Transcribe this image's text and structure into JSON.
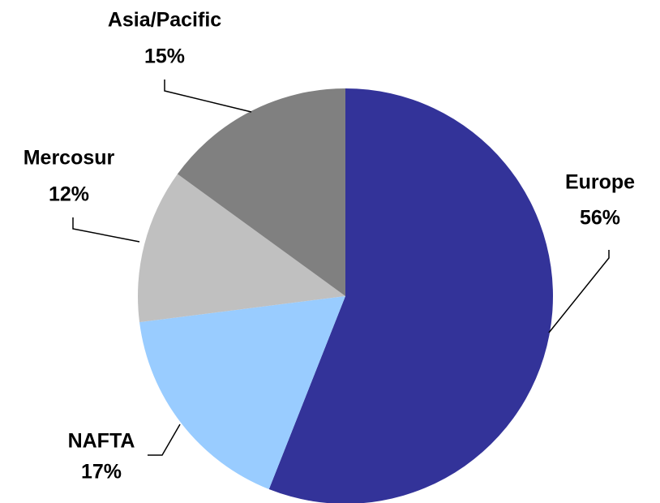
{
  "chart_data": {
    "type": "pie",
    "categories": [
      "Europe",
      "NAFTA",
      "Mercosur",
      "Asia/Pacific"
    ],
    "values": [
      56,
      17,
      12,
      15
    ],
    "value_labels": [
      "56%",
      "17%",
      "12%",
      "15%"
    ],
    "colors": [
      "#333399",
      "#99ccff",
      "#c0c0c0",
      "#808080"
    ]
  }
}
